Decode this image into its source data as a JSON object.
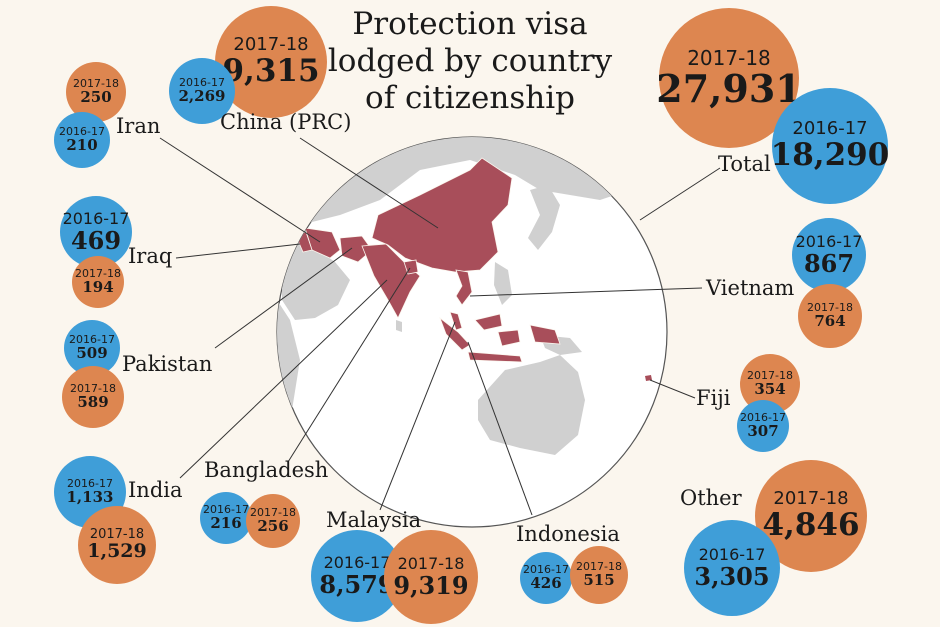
{
  "title_lines": [
    "Protection visa",
    "lodged by country",
    "of citizenship"
  ],
  "colors": {
    "y2016_17": "#3f9ed8",
    "y2017_18": "#dd8650",
    "highlight": "#a84e5a",
    "land": "#d0d0d0"
  },
  "countries": {
    "china": {
      "name": "China (PRC)",
      "y2016_17": {
        "label": "2016-17",
        "value": "2,269"
      },
      "y2017_18": {
        "label": "2017-18",
        "value": "9,315"
      }
    },
    "iran": {
      "name": "Iran",
      "y2016_17": {
        "label": "2016-17",
        "value": "210"
      },
      "y2017_18": {
        "label": "2017-18",
        "value": "250"
      }
    },
    "iraq": {
      "name": "Iraq",
      "y2016_17": {
        "label": "2016-17",
        "value": "469"
      },
      "y2017_18": {
        "label": "2017-18",
        "value": "194"
      }
    },
    "pakistan": {
      "name": "Pakistan",
      "y2016_17": {
        "label": "2016-17",
        "value": "509"
      },
      "y2017_18": {
        "label": "2017-18",
        "value": "589"
      }
    },
    "india": {
      "name": "India",
      "y2016_17": {
        "label": "2016-17",
        "value": "1,133"
      },
      "y2017_18": {
        "label": "2017-18",
        "value": "1,529"
      }
    },
    "bangladesh": {
      "name": "Bangladesh",
      "y2016_17": {
        "label": "2016-17",
        "value": "216"
      },
      "y2017_18": {
        "label": "2017-18",
        "value": "256"
      }
    },
    "malaysia": {
      "name": "Malaysia",
      "y2016_17": {
        "label": "2016-17",
        "value": "8,579"
      },
      "y2017_18": {
        "label": "2017-18",
        "value": "9,319"
      }
    },
    "indonesia": {
      "name": "Indonesia",
      "y2016_17": {
        "label": "2016-17",
        "value": "426"
      },
      "y2017_18": {
        "label": "2017-18",
        "value": "515"
      }
    },
    "total": {
      "name": "Total",
      "y2016_17": {
        "label": "2016-17",
        "value": "18,290"
      },
      "y2017_18": {
        "label": "2017-18",
        "value": "27,931"
      }
    },
    "vietnam": {
      "name": "Vietnam",
      "y2016_17": {
        "label": "2016-17",
        "value": "867"
      },
      "y2017_18": {
        "label": "2017-18",
        "value": "764"
      }
    },
    "fiji": {
      "name": "Fiji",
      "y2016_17": {
        "label": "2016-17",
        "value": "307"
      },
      "y2017_18": {
        "label": "2017-18",
        "value": "354"
      }
    },
    "other": {
      "name": "Other",
      "y2016_17": {
        "label": "2016-17",
        "value": "3,305"
      },
      "y2017_18": {
        "label": "2017-18",
        "value": "4,846"
      }
    }
  }
}
